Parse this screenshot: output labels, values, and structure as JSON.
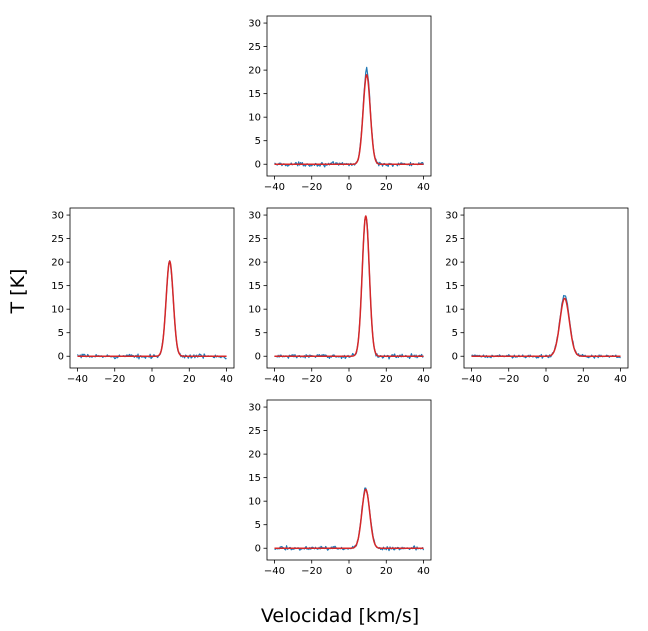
{
  "figure": {
    "xlabel": "Velocidad [km/s]",
    "ylabel": "T [K]"
  },
  "colors": {
    "observed": "#1f77b4",
    "model": "#d62728"
  },
  "chart_data": [
    {
      "type": "line",
      "position": "top",
      "xlim": [
        -44,
        44
      ],
      "ylim": [
        -2.5,
        31.5
      ],
      "xticks": [
        -40,
        -20,
        0,
        20,
        40
      ],
      "yticks": [
        0,
        5,
        10,
        15,
        20,
        25,
        30
      ],
      "series": [
        {
          "role": "observed",
          "peak_velocity": 9.5,
          "peak_temperature": 20,
          "fwhm": 4.5,
          "noise": 0.35
        },
        {
          "role": "model",
          "peak_velocity": 9.5,
          "peak_temperature": 19,
          "fwhm": 4.5
        }
      ]
    },
    {
      "type": "line",
      "position": "left",
      "xlim": [
        -44,
        44
      ],
      "ylim": [
        -2.5,
        31.5
      ],
      "xticks": [
        -40,
        -20,
        0,
        20,
        40
      ],
      "yticks": [
        0,
        5,
        10,
        15,
        20,
        25,
        30
      ],
      "series": [
        {
          "role": "observed",
          "peak_velocity": 9.5,
          "peak_temperature": 20,
          "fwhm": 4.5,
          "noise": 0.35
        },
        {
          "role": "model",
          "peak_velocity": 9.5,
          "peak_temperature": 20.2,
          "fwhm": 4.5
        }
      ]
    },
    {
      "type": "line",
      "position": "center",
      "xlim": [
        -44,
        44
      ],
      "ylim": [
        -2.5,
        31.5
      ],
      "xticks": [
        -40,
        -20,
        0,
        20,
        40
      ],
      "yticks": [
        0,
        5,
        10,
        15,
        20,
        25,
        30
      ],
      "series": [
        {
          "role": "observed",
          "peak_velocity": 9.0,
          "peak_temperature": 30,
          "fwhm": 4.5,
          "noise": 0.35
        },
        {
          "role": "model",
          "peak_velocity": 9.0,
          "peak_temperature": 29.8,
          "fwhm": 4.5
        }
      ]
    },
    {
      "type": "line",
      "position": "right",
      "xlim": [
        -44,
        44
      ],
      "ylim": [
        -2.5,
        31.5
      ],
      "xticks": [
        -40,
        -20,
        0,
        20,
        40
      ],
      "yticks": [
        0,
        5,
        10,
        15,
        20,
        25,
        30
      ],
      "series": [
        {
          "role": "observed",
          "peak_velocity": 10.0,
          "peak_temperature": 13,
          "fwhm": 6.0,
          "noise": 0.3
        },
        {
          "role": "model",
          "peak_velocity": 10.0,
          "peak_temperature": 12.3,
          "fwhm": 6.0
        }
      ]
    },
    {
      "type": "line",
      "position": "bottom",
      "xlim": [
        -44,
        44
      ],
      "ylim": [
        -2.5,
        31.5
      ],
      "xticks": [
        -40,
        -20,
        0,
        20,
        40
      ],
      "yticks": [
        0,
        5,
        10,
        15,
        20,
        25,
        30
      ],
      "series": [
        {
          "role": "observed",
          "peak_velocity": 9.0,
          "peak_temperature": 12.8,
          "fwhm": 5.0,
          "noise": 0.35
        },
        {
          "role": "model",
          "peak_velocity": 9.0,
          "peak_temperature": 12.5,
          "fwhm": 5.0
        }
      ]
    }
  ]
}
